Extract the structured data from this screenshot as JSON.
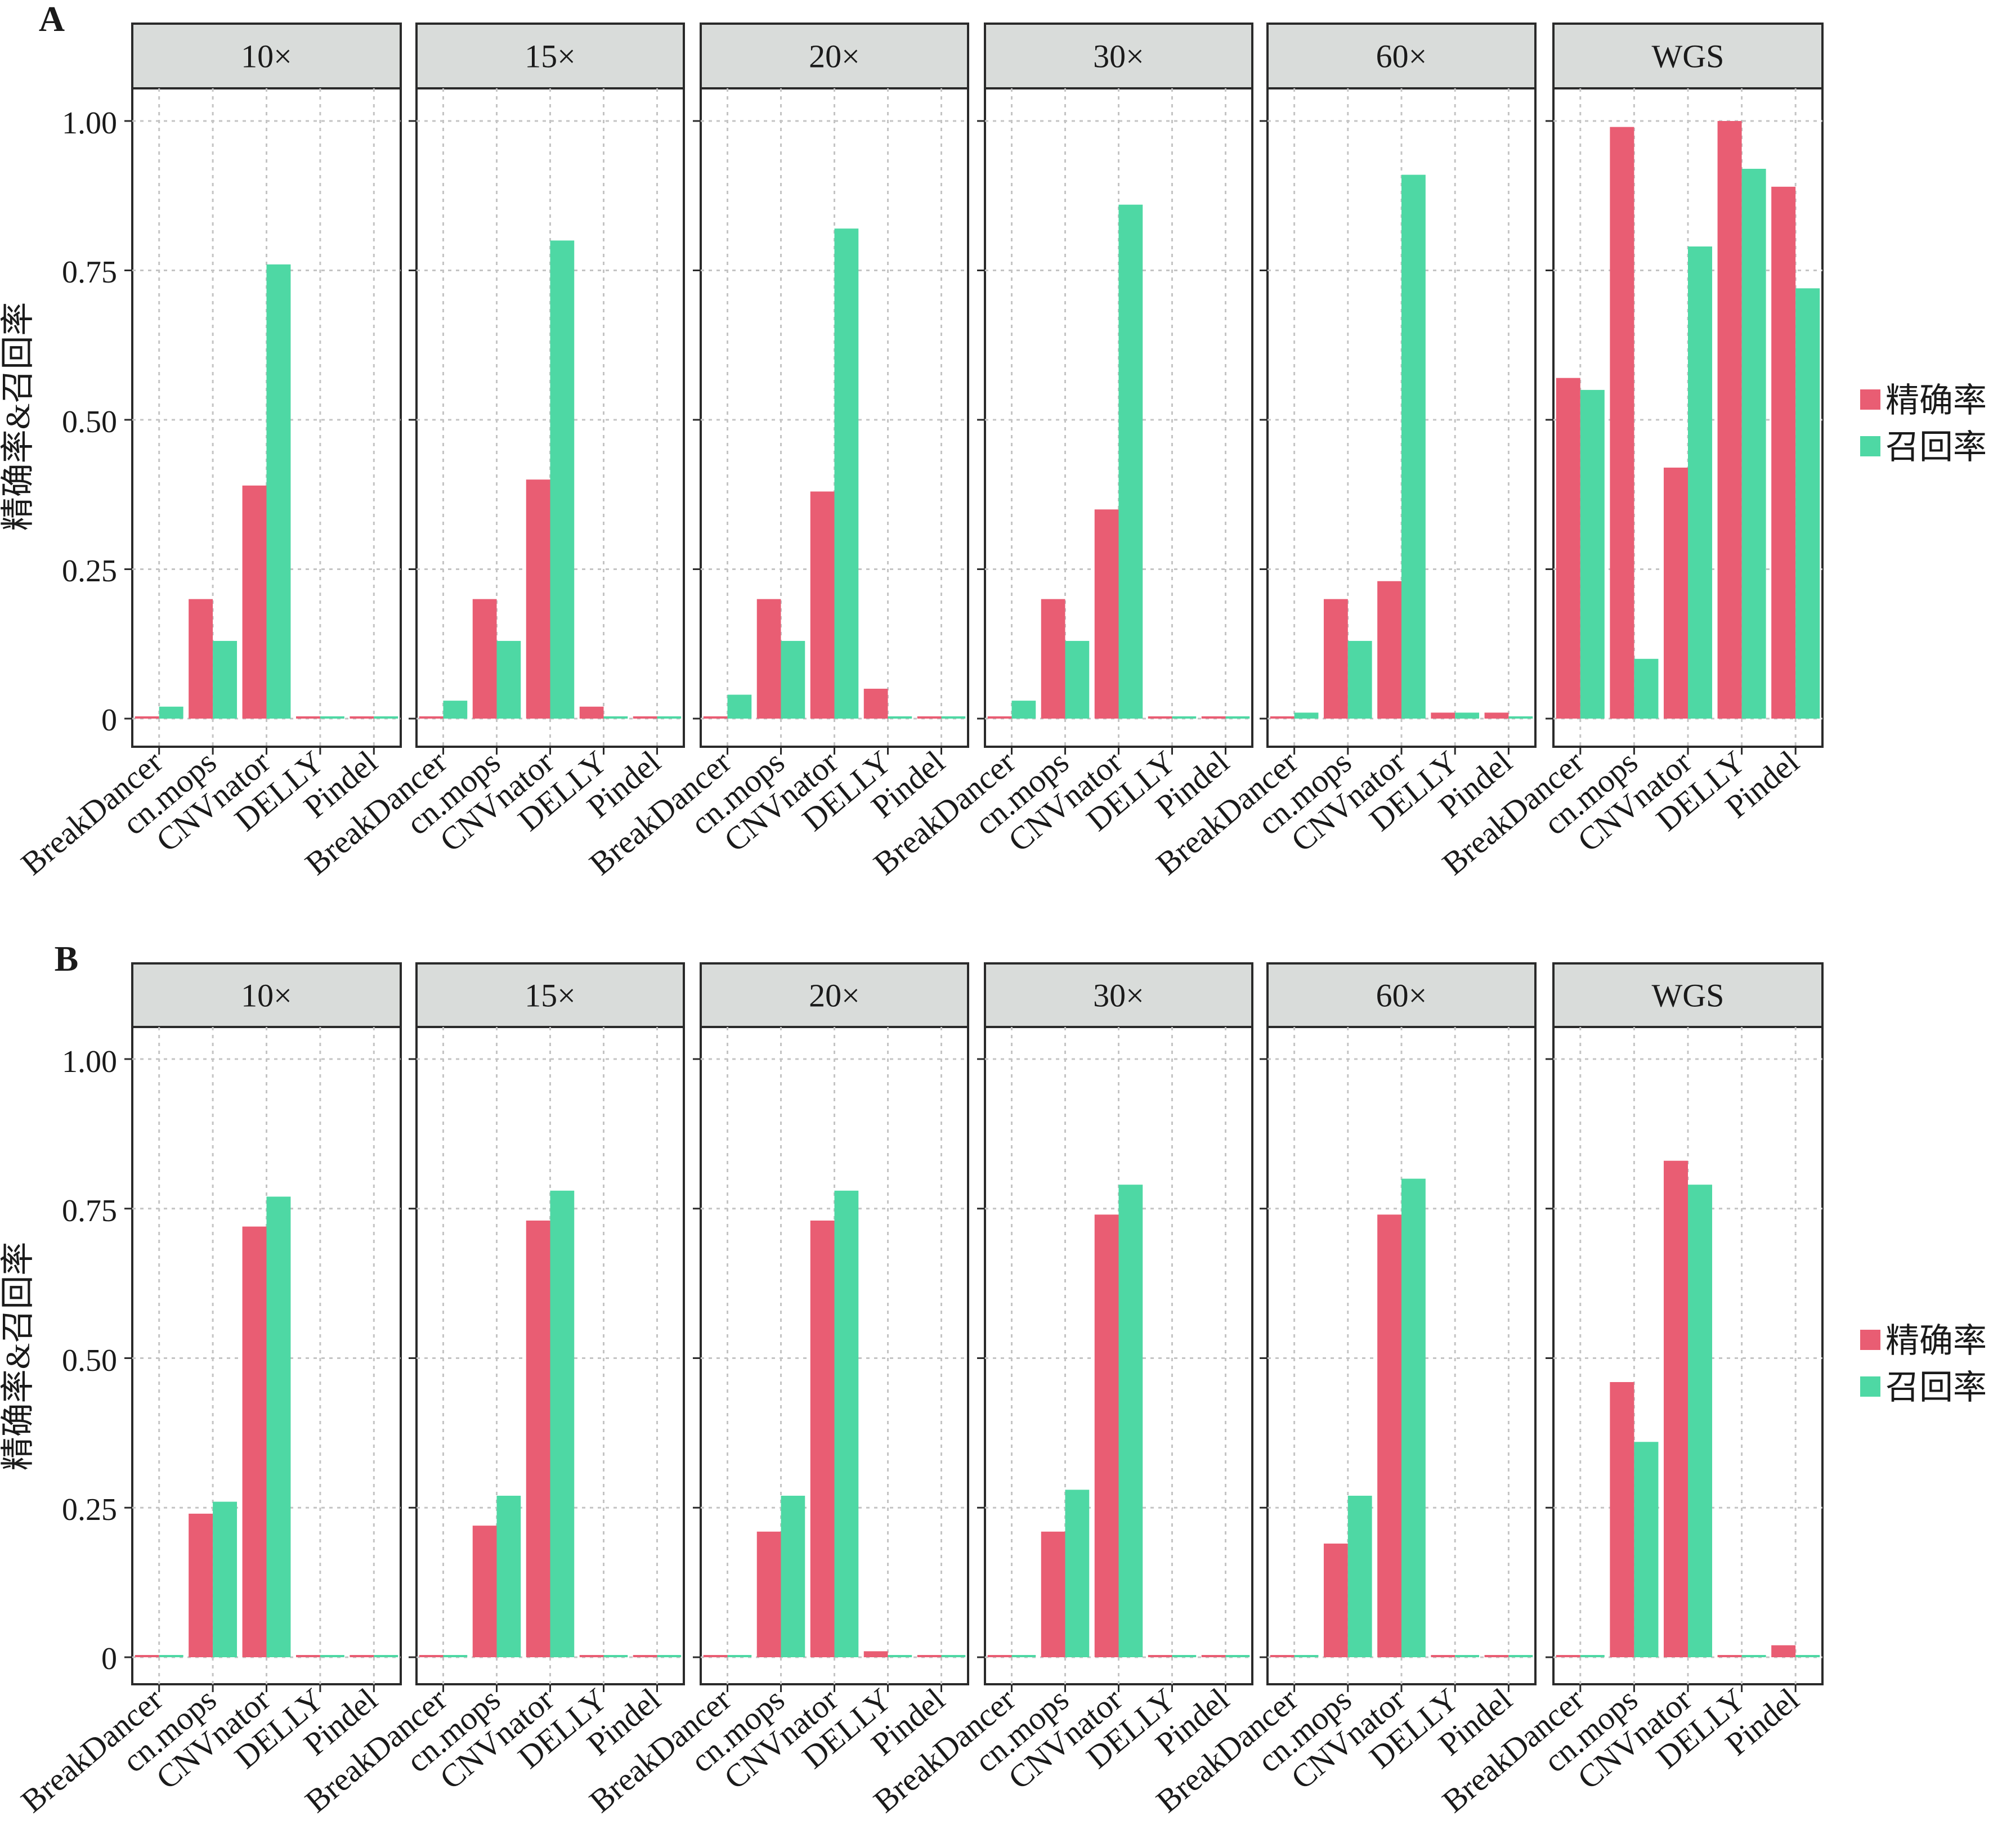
{
  "colors": {
    "precision": "#e95d73",
    "recall": "#4ed8a4",
    "strip_fill": "#d9dcda",
    "grid": "#c4c4c4",
    "frame": "#2a2a2a"
  },
  "legend": {
    "precision_label": "精确率",
    "recall_label": "召回率"
  },
  "chart_data": [
    {
      "type": "bar",
      "panel_label": "A",
      "ylabel": "精确率&召回率",
      "ylim": [
        0,
        1.1
      ],
      "y_ticks": [
        0,
        0.25,
        0.5,
        0.75,
        1.0
      ],
      "y_tick_labels": [
        "0",
        "0.25",
        "0.50",
        "0.75",
        "1.00"
      ],
      "grid": true,
      "legend_position": "right",
      "categories": [
        "BreakDancer",
        "cn.mops",
        "CNVnator",
        "DELLY",
        "Pindel"
      ],
      "facets": [
        {
          "title": "10×",
          "series": [
            {
              "name": "精确率",
              "values": [
                0.0,
                0.2,
                0.39,
                0,
                0
              ]
            },
            {
              "name": "召回率",
              "values": [
                0.02,
                0.13,
                0.76,
                0,
                0
              ]
            }
          ]
        },
        {
          "title": "15×",
          "series": [
            {
              "name": "精确率",
              "values": [
                0.0,
                0.2,
                0.4,
                0.02,
                0.0
              ]
            },
            {
              "name": "召回率",
              "values": [
                0.03,
                0.13,
                0.8,
                0.0,
                0.0
              ]
            }
          ]
        },
        {
          "title": "20×",
          "series": [
            {
              "name": "精确率",
              "values": [
                0.0,
                0.2,
                0.38,
                0.05,
                0
              ]
            },
            {
              "name": "召回率",
              "values": [
                0.04,
                0.13,
                0.82,
                0.0,
                0
              ]
            }
          ]
        },
        {
          "title": "30×",
          "series": [
            {
              "name": "精确率",
              "values": [
                0.0,
                0.2,
                0.35,
                0.0,
                0.0
              ]
            },
            {
              "name": "召回率",
              "values": [
                0.03,
                0.13,
                0.86,
                0.0,
                0.0
              ]
            }
          ]
        },
        {
          "title": "60×",
          "series": [
            {
              "name": "精确率",
              "values": [
                0.0,
                0.2,
                0.23,
                0.01,
                0.01
              ]
            },
            {
              "name": "召回率",
              "values": [
                0.01,
                0.13,
                0.91,
                0.01,
                0.0
              ]
            }
          ]
        },
        {
          "title": "WGS",
          "series": [
            {
              "name": "精确率",
              "values": [
                0.57,
                0.99,
                0.42,
                1.0,
                0.89
              ]
            },
            {
              "name": "召回率",
              "values": [
                0.55,
                0.1,
                0.79,
                0.92,
                0.72
              ]
            }
          ]
        }
      ]
    },
    {
      "type": "bar",
      "panel_label": "B",
      "ylabel": "精确率&召回率",
      "ylim": [
        0,
        1.1
      ],
      "y_ticks": [
        0,
        0.25,
        0.5,
        0.75,
        1.0
      ],
      "y_tick_labels": [
        "0",
        "0.25",
        "0.50",
        "0.75",
        "1.00"
      ],
      "grid": true,
      "legend_position": "right",
      "categories": [
        "BreakDancer",
        "cn.mops",
        "CNVnator",
        "DELLY",
        "Pindel"
      ],
      "facets": [
        {
          "title": "10×",
          "series": [
            {
              "name": "精确率",
              "values": [
                0,
                0.24,
                0.72,
                0,
                0
              ]
            },
            {
              "name": "召回率",
              "values": [
                0,
                0.26,
                0.77,
                0.0,
                0
              ]
            }
          ]
        },
        {
          "title": "15×",
          "series": [
            {
              "name": "精确率",
              "values": [
                0,
                0.22,
                0.73,
                0,
                0.0
              ]
            },
            {
              "name": "召回率",
              "values": [
                0,
                0.27,
                0.78,
                0.0,
                0.0
              ]
            }
          ]
        },
        {
          "title": "20×",
          "series": [
            {
              "name": "精确率",
              "values": [
                0,
                0.21,
                0.73,
                0.01,
                0.0
              ]
            },
            {
              "name": "召回率",
              "values": [
                0,
                0.27,
                0.78,
                0.0,
                0.0
              ]
            }
          ]
        },
        {
          "title": "30×",
          "series": [
            {
              "name": "精确率",
              "values": [
                0,
                0.21,
                0.74,
                0,
                0
              ]
            },
            {
              "name": "召回率",
              "values": [
                0,
                0.28,
                0.79,
                0.0,
                0
              ]
            }
          ]
        },
        {
          "title": "60×",
          "series": [
            {
              "name": "精确率",
              "values": [
                0,
                0.19,
                0.74,
                0.0,
                0
              ]
            },
            {
              "name": "召回率",
              "values": [
                0,
                0.27,
                0.8,
                0.0,
                0
              ]
            }
          ]
        },
        {
          "title": "WGS",
          "series": [
            {
              "name": "精确率",
              "values": [
                0,
                0.46,
                0.83,
                0,
                0.02
              ]
            },
            {
              "name": "召回率",
              "values": [
                0,
                0.36,
                0.79,
                0.0,
                0.0
              ]
            }
          ]
        }
      ]
    }
  ]
}
